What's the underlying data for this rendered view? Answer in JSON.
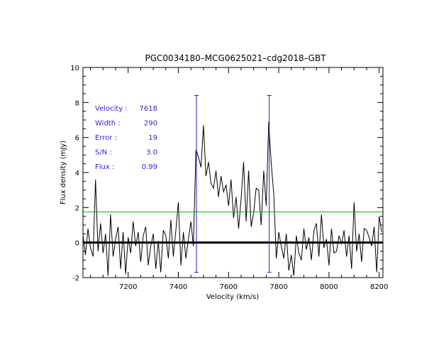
{
  "chart_data": {
    "type": "line",
    "title": "PGC0034180–MCG0625021–cdg2018–GBT",
    "xlabel": "Velocity (km/s)",
    "ylabel": "Flux density (mJy)",
    "xlim": [
      7020,
      8215
    ],
    "ylim": [
      -2,
      10
    ],
    "xticks": [
      7200,
      7400,
      7600,
      7800,
      8000,
      8200
    ],
    "yticks": [
      -2,
      0,
      2,
      4,
      6,
      8,
      10
    ],
    "grid": false,
    "zero_line": 0,
    "rms_line": 1.75,
    "markers": [
      {
        "x": 7472,
        "y_range": [
          -1.7,
          8.4
        ]
      },
      {
        "x": 7762,
        "y_range": [
          -1.7,
          8.4
        ]
      }
    ],
    "colors": {
      "spectrum": "#000000",
      "rms_line": "#00c000",
      "markers": "#2020c8",
      "annotations": "#3a1ad6",
      "zero_line": "#000000"
    },
    "annotations": [
      {
        "label": "Velocity :",
        "value": "7618"
      },
      {
        "label": "Width :",
        "value": "290"
      },
      {
        "label": "Error :",
        "value": "19"
      },
      {
        "label": "S/N :",
        "value": "3.0"
      },
      {
        "label": "Flux :",
        "value": "0.99"
      }
    ],
    "series": [
      {
        "x": [
          7020,
          7030,
          7040,
          7050,
          7060,
          7070,
          7080,
          7090,
          7100,
          7110,
          7120,
          7130,
          7140,
          7150,
          7160,
          7170,
          7180,
          7190,
          7200,
          7210,
          7220,
          7230,
          7240,
          7250,
          7260,
          7270,
          7280,
          7290,
          7300,
          7310,
          7320,
          7330,
          7340,
          7350,
          7360,
          7370,
          7380,
          7390,
          7400,
          7410,
          7420,
          7430,
          7440,
          7450,
          7460,
          7470,
          7480,
          7490,
          7500,
          7510,
          7520,
          7530,
          7540,
          7550,
          7560,
          7570,
          7580,
          7590,
          7600,
          7610,
          7620,
          7630,
          7640,
          7650,
          7660,
          7670,
          7680,
          7690,
          7700,
          7710,
          7720,
          7730,
          7740,
          7750,
          7760,
          7770,
          7780,
          7790,
          7800,
          7810,
          7820,
          7830,
          7840,
          7850,
          7860,
          7870,
          7880,
          7890,
          7900,
          7910,
          7920,
          7930,
          7940,
          7950,
          7960,
          7970,
          7980,
          7990,
          8000,
          8010,
          8020,
          8030,
          8040,
          8050,
          8060,
          8070,
          8080,
          8090,
          8100,
          8110,
          8120,
          8130,
          8140,
          8150,
          8160,
          8170,
          8180,
          8190,
          8200,
          8210
        ],
        "y": [
          0.4,
          -0.7,
          0.8,
          -0.3,
          -0.8,
          3.6,
          -0.5,
          1.1,
          -0.6,
          0.5,
          -1.9,
          1.6,
          -0.8,
          0.2,
          0.9,
          -1.5,
          0.6,
          -1.8,
          0.3,
          -0.6,
          1.2,
          -0.2,
          0.6,
          -1.1,
          0.4,
          0.9,
          -1.3,
          -0.2,
          0.5,
          -1.5,
          0.1,
          -1.7,
          0.7,
          0.4,
          -0.9,
          1.3,
          -0.8,
          0.7,
          2.3,
          -1.3,
          0.6,
          -0.9,
          0.2,
          1.2,
          -0.2,
          5.3,
          4.9,
          4.3,
          6.7,
          3.8,
          4.6,
          3.4,
          3.1,
          4.1,
          2.6,
          3.8,
          2.9,
          3.3,
          2.1,
          3.6,
          1.4,
          2.6,
          0.8,
          2.5,
          4.6,
          1.2,
          4.1,
          0.9,
          1.7,
          3.1,
          3.0,
          1.0,
          4.1,
          2.1,
          6.9,
          4.5,
          2.8,
          -0.9,
          0.6,
          -0.2,
          -0.9,
          0.5,
          -1.6,
          -0.7,
          -1.9,
          0.4,
          -0.6,
          -1.0,
          0.8,
          -0.4,
          0.3,
          -1.0,
          0.7,
          1.1,
          -0.8,
          1.6,
          -0.3,
          0.2,
          -1.3,
          0.8,
          -0.6,
          -0.5,
          0.4,
          -0.1,
          0.7,
          -0.8,
          0.4,
          -1.5,
          2.3,
          -0.5,
          0.5,
          -1.1,
          0.8,
          0.7,
          0.3,
          -0.2,
          0.9,
          -1.7,
          1.5,
          0.6
        ]
      }
    ]
  }
}
